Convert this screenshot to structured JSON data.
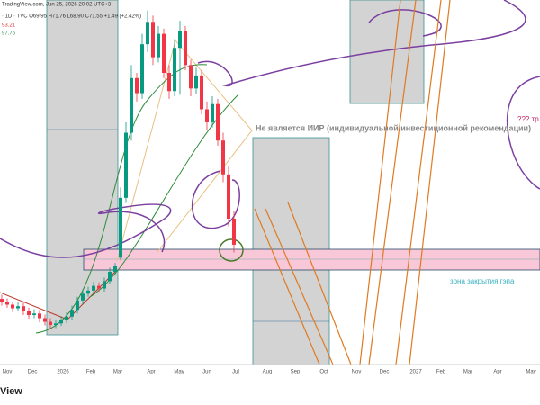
{
  "header": {
    "source": "TradingView.com, Jun 25, 2026 20:02 UTC+3",
    "ohlc": "· 1D · TVC  O69.95  H71.76  L68.90  C71.55  +1.49 (+2.42%)",
    "level_red": "93.21",
    "level_green": "97.76"
  },
  "chart_data": {
    "type": "candlestick",
    "categories": [
      null,
      null,
      null,
      null,
      null,
      null,
      null,
      null,
      null,
      null,
      null,
      null,
      null,
      null,
      null,
      null,
      null,
      null,
      null,
      null,
      null,
      null,
      null,
      null,
      null,
      null,
      null,
      null,
      null,
      null,
      null,
      null,
      null,
      null,
      null,
      null,
      null,
      null,
      null,
      null,
      null,
      null,
      null,
      null
    ],
    "open": [
      52.6,
      52,
      51.5,
      50.8,
      51.2,
      50.2,
      49.5,
      49.8,
      48.9,
      48.2,
      47.6,
      47.9,
      48.5,
      49.2,
      50.5,
      52.3,
      53.6,
      54.2,
      55.1,
      54.6,
      56,
      57.8,
      60.5,
      72,
      84.5,
      95,
      92.1,
      101.5,
      105.8,
      99,
      103.5,
      96,
      92.5,
      100.8,
      104,
      97.5,
      93,
      95.5,
      89,
      86.5,
      90,
      83,
      76.5,
      68
    ],
    "high": [
      53.4,
      52.7,
      52.1,
      52,
      51.9,
      50.9,
      50.6,
      50.5,
      49.6,
      48.9,
      48.6,
      49.3,
      50,
      51.3,
      53,
      54.4,
      54.9,
      55.9,
      55.8,
      56.7,
      58.6,
      59.5,
      74,
      86.5,
      97.5,
      96,
      103.5,
      108,
      107,
      105,
      104.5,
      97.5,
      102.5,
      106,
      105,
      98.5,
      97,
      96.5,
      90.5,
      91.5,
      91,
      84.5,
      78,
      69.5
    ],
    "low": [
      51.3,
      50.9,
      50.1,
      50.2,
      49.5,
      48.8,
      48.9,
      48.1,
      47.5,
      46.8,
      47,
      47.4,
      48,
      48.6,
      49.8,
      51.6,
      53,
      53.5,
      54,
      54,
      55.4,
      57.1,
      60,
      71,
      83,
      90.5,
      91,
      100,
      97.5,
      98,
      95,
      91,
      91.5,
      91.8,
      96.5,
      91.5,
      92,
      88,
      85,
      85.5,
      82,
      75,
      66.5,
      61.5
    ],
    "close": [
      52,
      51.5,
      50.8,
      51.2,
      50.2,
      49.5,
      49.8,
      48.9,
      48.2,
      47.6,
      47.9,
      48.5,
      49.2,
      50.5,
      52.3,
      53.6,
      54.2,
      55.1,
      54.6,
      56,
      57.8,
      58.9,
      72,
      84.5,
      95,
      92.1,
      101.5,
      105.8,
      99,
      103.5,
      96,
      92.5,
      100.8,
      104,
      97.5,
      93,
      95.5,
      89,
      86.5,
      90,
      83,
      76.5,
      68,
      63
    ],
    "up_color": "#089981",
    "down_color": "#f23645",
    "ylim": [
      40,
      110
    ],
    "time_labels": [
      "Nov",
      "Dec",
      "2026",
      "Feb",
      "Mar",
      "Apr",
      "May",
      "Jun",
      "Jul",
      "Aug",
      "Sep",
      "Oct",
      "Nov",
      "Dec",
      "2027",
      "Feb",
      "Mar",
      "Apr",
      "May"
    ],
    "annotations": {
      "disclaimer": "Не является ИИР (индивидуальной инвестиционной рекомендации)",
      "gap_zone": "зона закрытия гэпа",
      "question": "??? тр"
    }
  },
  "footer": {
    "logo": "View"
  }
}
